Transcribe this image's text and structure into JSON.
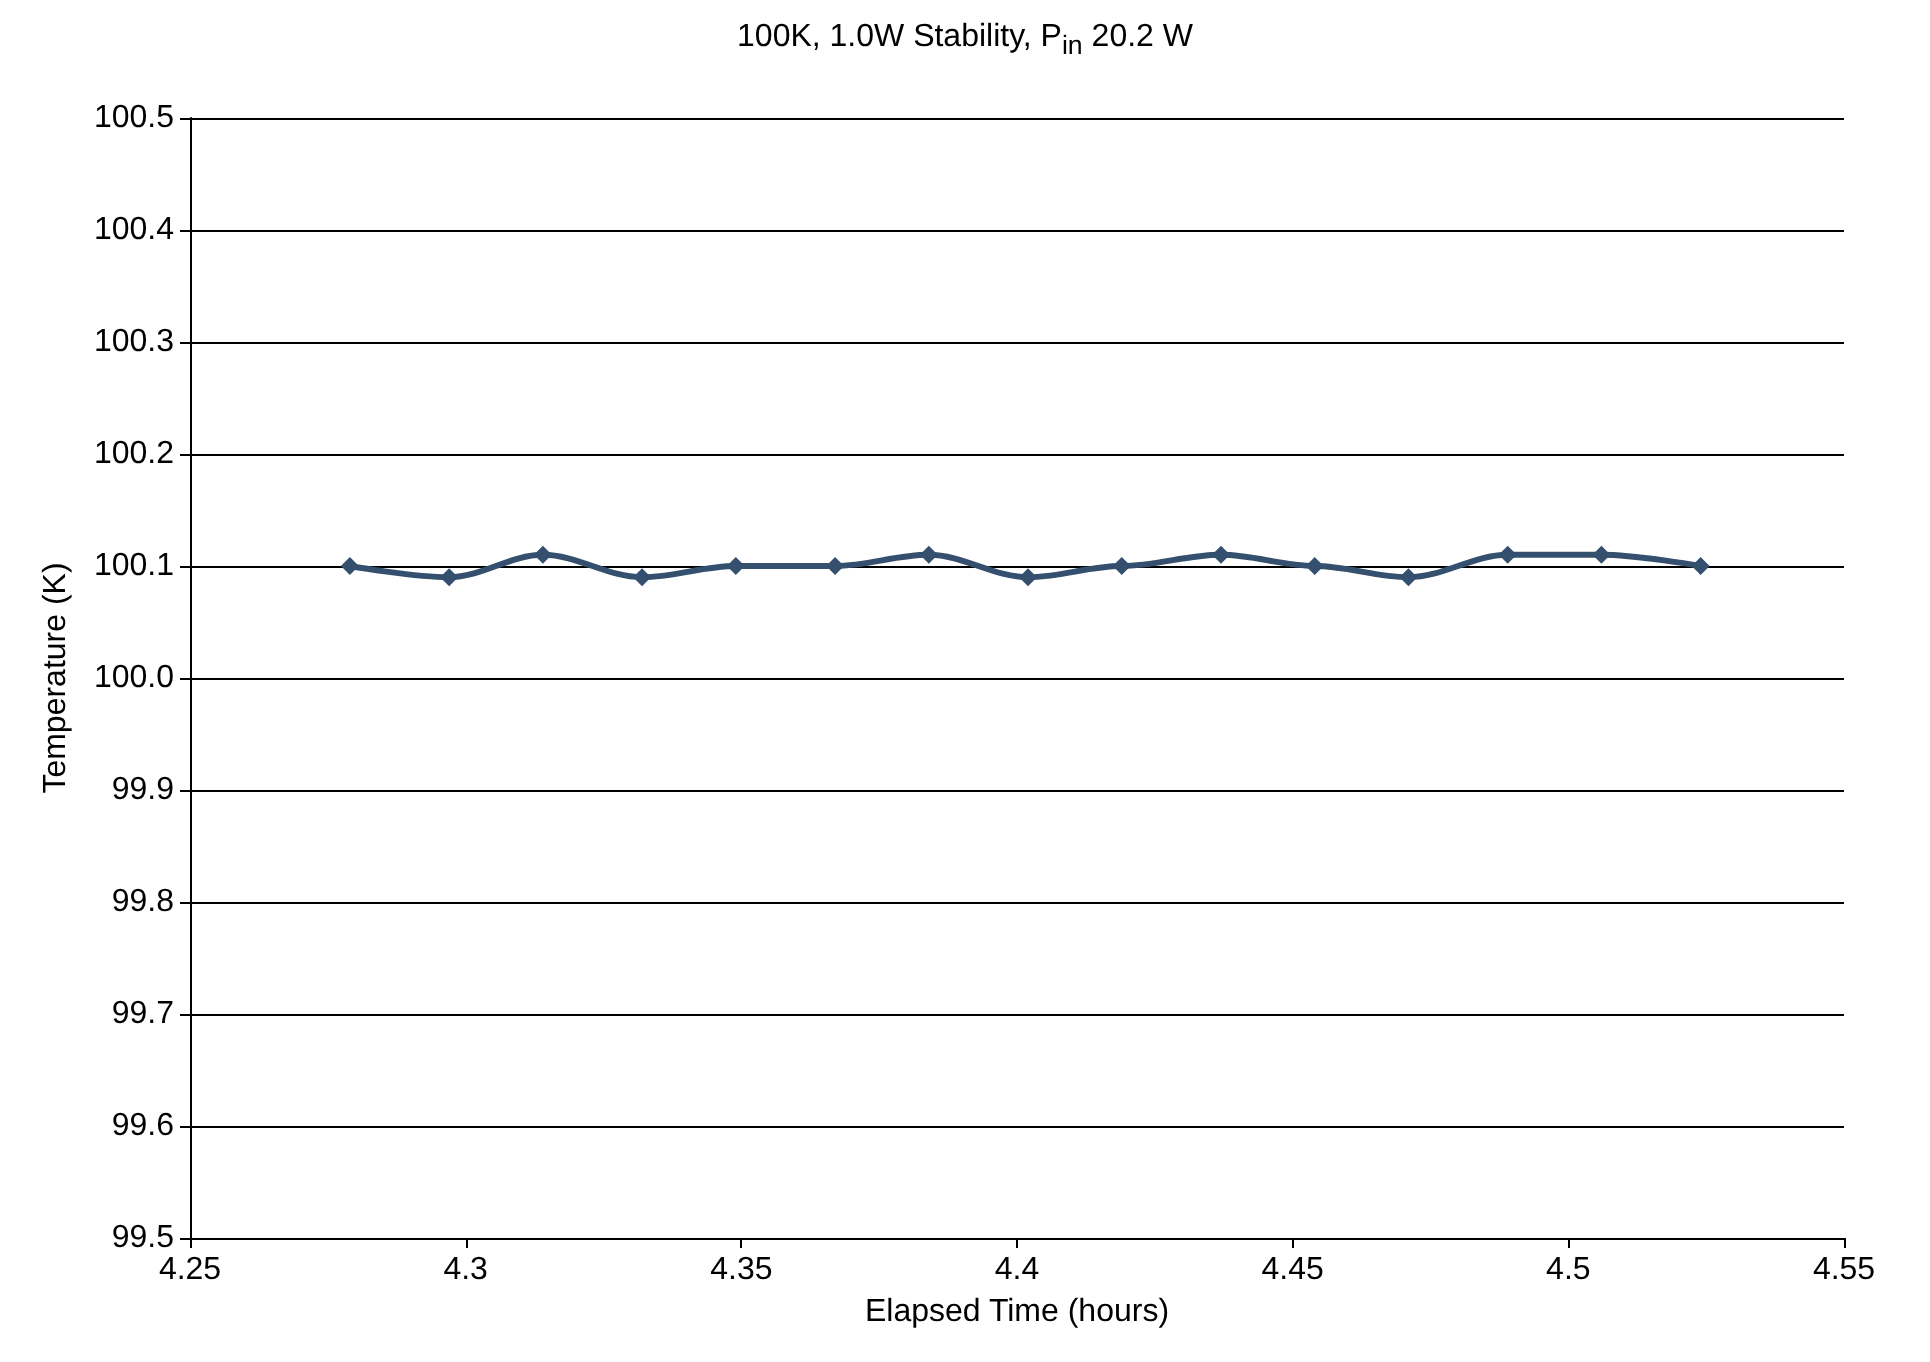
{
  "chart_data": {
    "type": "line",
    "title": "100K, 1.0W Stability, P$_{in}$ 20.2 W",
    "xlabel": "Elapsed Time (hours)",
    "ylabel": "Temperature (K)",
    "x": [
      4.279,
      4.297,
      4.314,
      4.332,
      4.349,
      4.367,
      4.384,
      4.402,
      4.419,
      4.437,
      4.454,
      4.471,
      4.489,
      4.506,
      4.524
    ],
    "series": [
      {
        "color": "#34506e",
        "values": [
          100.1,
          100.09,
          100.11,
          100.09,
          100.1,
          100.1,
          100.11,
          100.09,
          100.1,
          100.11,
          100.1,
          100.09,
          100.11,
          100.11,
          100.1
        ]
      }
    ],
    "xlim": [
      4.25,
      4.55
    ],
    "xticks": [
      4.25,
      4.3,
      4.35,
      4.4,
      4.45,
      4.5,
      4.55
    ],
    "ylim": [
      99.5,
      100.5
    ],
    "yticks": [
      {
        "value": 99.5,
        "label": "99.5"
      },
      99.6,
      99.7,
      99.8,
      99.9,
      {
        "value": 100,
        "label": "100.0"
      },
      100.1,
      100.2,
      100.3,
      100.4,
      100.5
    ],
    "grid": "y",
    "marker": "diamond",
    "line_style": "solid"
  }
}
